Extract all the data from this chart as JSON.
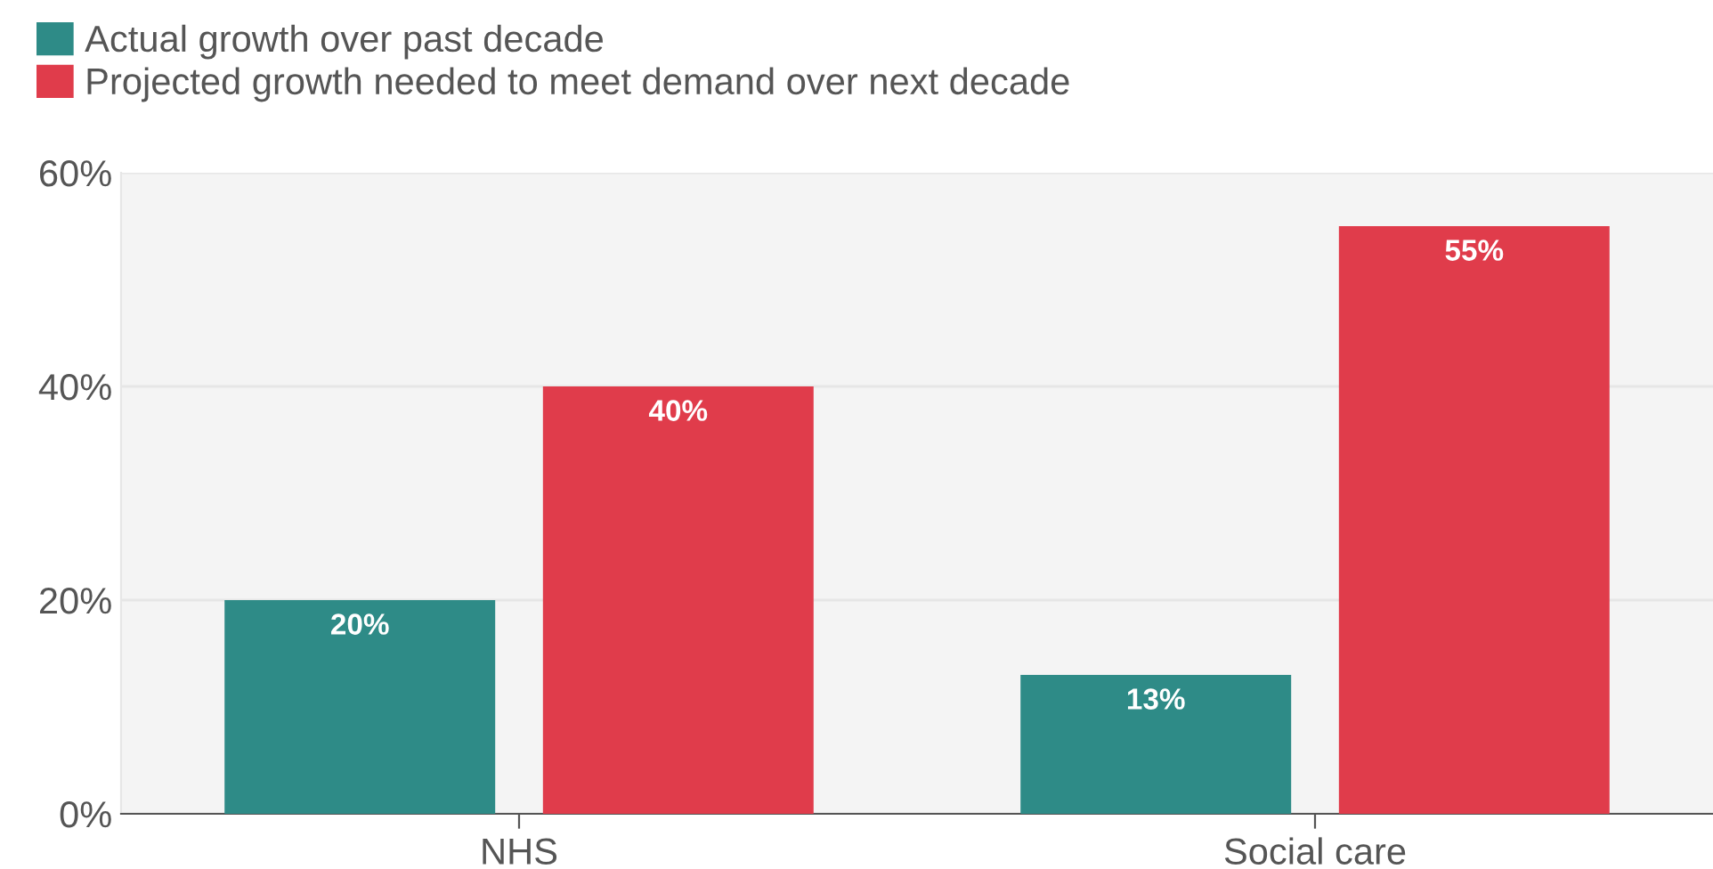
{
  "chart_data": {
    "type": "bar",
    "categories": [
      "NHS",
      "Social care"
    ],
    "series": [
      {
        "name": "Actual growth over past decade",
        "color": "#2e8b87",
        "values": [
          20,
          13
        ],
        "value_labels": [
          "20%",
          "13%"
        ]
      },
      {
        "name": "Projected growth needed to meet demand over next decade",
        "color": "#e03c4b",
        "values": [
          40,
          55
        ],
        "value_labels": [
          "40%",
          "55%"
        ]
      }
    ],
    "ylim": [
      0,
      60
    ],
    "yticks": [
      {
        "value": 0,
        "label": "0%"
      },
      {
        "value": 20,
        "label": "20%"
      },
      {
        "value": 40,
        "label": "40%"
      },
      {
        "value": 60,
        "label": "60%"
      }
    ],
    "grid": "y",
    "legend": "top left"
  }
}
